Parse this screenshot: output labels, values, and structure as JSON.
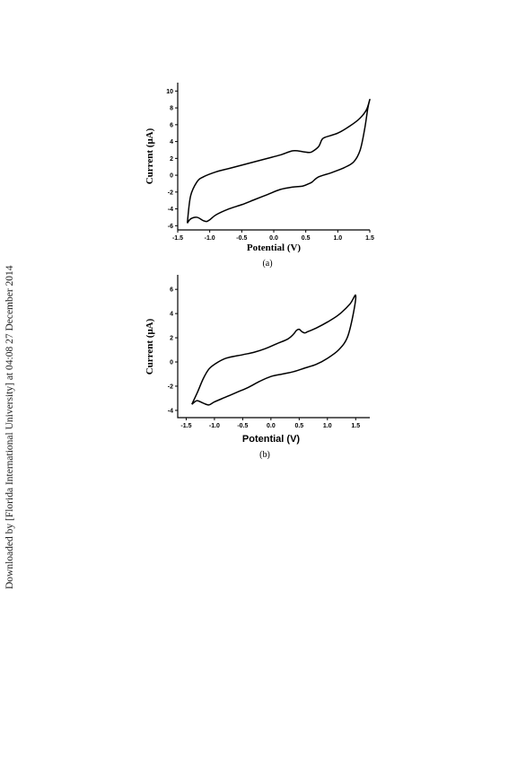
{
  "watermark": {
    "text": "Downloaded by [Florida International University] at 04:08 27 December 2014"
  },
  "chart_data": [
    {
      "type": "line",
      "caption": "(a)",
      "xlabel": "Potential (V)",
      "ylabel": "Current (μA)",
      "xlim": [
        -1.5,
        1.5
      ],
      "ylim": [
        -6.5,
        11
      ],
      "xticks": [
        -1.5,
        -1.0,
        -0.5,
        0.0,
        0.5,
        1.0,
        1.5
      ],
      "xtick_labels": [
        "-1.5",
        "-1.0",
        "-0.5",
        "0.0",
        "0.5",
        "1.0",
        "1.5"
      ],
      "yticks": [
        -6,
        -4,
        -2,
        0,
        2,
        4,
        6,
        8,
        10
      ],
      "ytick_labels": [
        "-6",
        "-4",
        "-2",
        "0",
        "2",
        "4",
        "6",
        "8",
        "10"
      ],
      "series": [
        {
          "x": [
            -1.35,
            -1.3,
            -1.2,
            -1.1,
            -1.05,
            -1.0,
            -0.9,
            -0.7,
            -0.5,
            -0.3,
            -0.1,
            0.1,
            0.3,
            0.45,
            0.55,
            0.6,
            0.7,
            0.9,
            1.1,
            1.25,
            1.35,
            1.42,
            1.47,
            1.5,
            1.45,
            1.35,
            1.2,
            1.0,
            0.8,
            0.75,
            0.7,
            0.6,
            0.55,
            0.45,
            0.3,
            0.1,
            -0.1,
            -0.3,
            -0.5,
            -0.7,
            -0.9,
            -1.1,
            -1.2,
            -1.3,
            -1.35
          ],
          "y": [
            -5.7,
            -5.2,
            -5.0,
            -5.4,
            -5.5,
            -5.3,
            -4.7,
            -4.0,
            -3.5,
            -2.9,
            -2.3,
            -1.7,
            -1.4,
            -1.3,
            -1.0,
            -0.8,
            -0.2,
            0.3,
            0.9,
            1.6,
            3.0,
            5.5,
            8.0,
            9.0,
            7.8,
            6.8,
            5.9,
            5.0,
            4.5,
            4.2,
            3.4,
            2.8,
            2.7,
            2.8,
            2.9,
            2.4,
            2.0,
            1.6,
            1.2,
            0.8,
            0.4,
            -0.2,
            -0.8,
            -2.5,
            -5.7
          ]
        }
      ]
    },
    {
      "type": "line",
      "caption": "(b)",
      "xlabel": "Potential  (V)",
      "ylabel": "Current (μA)",
      "xlim": [
        -1.65,
        1.75
      ],
      "ylim": [
        -4.6,
        7.2
      ],
      "xticks": [
        -1.5,
        -1.0,
        -0.5,
        0.0,
        0.5,
        1.0,
        1.5
      ],
      "xtick_labels": [
        "-1.5",
        "-1.0",
        "-0.5",
        "0.0",
        "0.5",
        "1.0",
        "1.5"
      ],
      "yticks": [
        -4,
        -2,
        0,
        2,
        4,
        6
      ],
      "ytick_labels": [
        "-4",
        "-2",
        "0",
        "2",
        "4",
        "6"
      ],
      "series": [
        {
          "x": [
            -1.4,
            -1.35,
            -1.3,
            -1.2,
            -1.1,
            -1.0,
            -0.8,
            -0.6,
            -0.4,
            -0.2,
            0.0,
            0.2,
            0.4,
            0.6,
            0.8,
            1.0,
            1.2,
            1.35,
            1.45,
            1.5,
            1.4,
            1.2,
            1.0,
            0.8,
            0.65,
            0.6,
            0.55,
            0.5,
            0.45,
            0.4,
            0.3,
            0.1,
            -0.1,
            -0.3,
            -0.5,
            -0.8,
            -1.0,
            -1.1,
            -1.2,
            -1.3,
            -1.4
          ],
          "y": [
            -3.5,
            -3.3,
            -3.2,
            -3.4,
            -3.55,
            -3.3,
            -2.9,
            -2.5,
            -2.1,
            -1.6,
            -1.2,
            -1.0,
            -0.8,
            -0.5,
            -0.2,
            0.3,
            1.0,
            2.0,
            3.8,
            5.5,
            4.8,
            3.9,
            3.3,
            2.8,
            2.5,
            2.4,
            2.5,
            2.7,
            2.6,
            2.3,
            1.9,
            1.5,
            1.1,
            0.8,
            0.6,
            0.3,
            -0.2,
            -0.6,
            -1.4,
            -2.5,
            -3.5
          ]
        }
      ]
    }
  ]
}
